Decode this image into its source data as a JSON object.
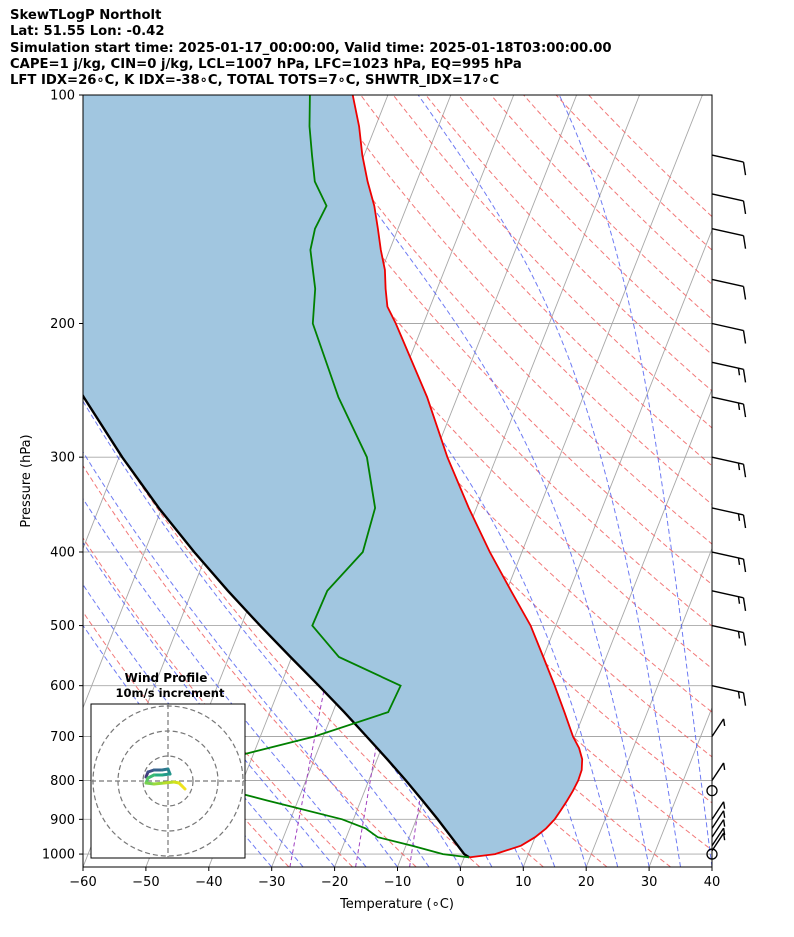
{
  "header": {
    "title": "SkewTLogP Northolt",
    "location": "Lat: 51.55   Lon: -0.42",
    "times": "Simulation start time: 2025-01-17_00:00:00, Valid time: 2025-01-18T03:00:00.00",
    "params": "CAPE=1 j/kg, CIN=0 j/kg, LCL=1007 hPa, LFC=1023 hPa, EQ=995 hPa",
    "indices": "LFT IDX=26∘C, K IDX=-38∘C, TOTAL TOTS=7∘C, SHWTR_IDX=17∘C"
  },
  "chart_data": {
    "type": "line",
    "title": "SkewTLogP Northolt",
    "xlabel": "Temperature (∘C)",
    "ylabel": "Pressure (hPa)",
    "xlim": [
      -60,
      40
    ],
    "ylim": [
      1040,
      100
    ],
    "y_scale": "log",
    "grid": true,
    "x_ticks": [
      "−60",
      "−50",
      "−40",
      "−30",
      "−20",
      "−10",
      "0",
      "10",
      "20",
      "30",
      "40"
    ],
    "y_ticks": [
      "100",
      "200",
      "300",
      "400",
      "500",
      "600",
      "700",
      "800",
      "900",
      "1000"
    ],
    "colors": {
      "temperature": "#ee0000",
      "dewpoint": "#008000",
      "parcel": "#000000",
      "fill": "#a1c6e0",
      "dry_adiabat": "#f06060",
      "moist_adiabat": "#4a5af0",
      "mixing_ratio": "#a040c0",
      "isotherm": "#a8a8a8"
    },
    "series": [
      {
        "key": "temperature",
        "points": [
          [
            1010,
            0.8
          ],
          [
            1000,
            4.7
          ],
          [
            975,
            8.3
          ],
          [
            950,
            10.0
          ],
          [
            925,
            11.2
          ],
          [
            900,
            12.0
          ],
          [
            875,
            12.4
          ],
          [
            850,
            12.8
          ],
          [
            825,
            13.1
          ],
          [
            800,
            13.3
          ],
          [
            775,
            13.2
          ],
          [
            750,
            12.6
          ],
          [
            725,
            11.4
          ],
          [
            700,
            9.7
          ],
          [
            650,
            6.8
          ],
          [
            600,
            3.6
          ],
          [
            550,
            0.0
          ],
          [
            500,
            -4.0
          ],
          [
            450,
            -9.3
          ],
          [
            400,
            -15.1
          ],
          [
            350,
            -21.2
          ],
          [
            300,
            -27.8
          ],
          [
            250,
            -34.8
          ],
          [
            200,
            -44.4
          ],
          [
            190,
            -46.8
          ],
          [
            180,
            -48.2
          ],
          [
            170,
            -49.5
          ],
          [
            160,
            -51.4
          ],
          [
            150,
            -53.2
          ],
          [
            140,
            -55.2
          ],
          [
            130,
            -57.8
          ],
          [
            120,
            -60.3
          ],
          [
            110,
            -62.6
          ],
          [
            100,
            -65.6
          ]
        ]
      },
      {
        "key": "dewpoint",
        "points": [
          [
            1010,
            0.8
          ],
          [
            1000,
            -3.6
          ],
          [
            975,
            -9.0
          ],
          [
            950,
            -15.0
          ],
          [
            925,
            -17.5
          ],
          [
            900,
            -21.8
          ],
          [
            850,
            -34.9
          ],
          [
            810,
            -45.6
          ],
          [
            800,
            -47.2
          ],
          [
            780,
            -52.7
          ],
          [
            750,
            -44.3
          ],
          [
            700,
            -31.4
          ],
          [
            650,
            -21.2
          ],
          [
            600,
            -20.9
          ],
          [
            550,
            -32.5
          ],
          [
            500,
            -38.7
          ],
          [
            450,
            -38.5
          ],
          [
            400,
            -35.3
          ],
          [
            350,
            -36.1
          ],
          [
            300,
            -40.6
          ],
          [
            250,
            -48.9
          ],
          [
            200,
            -57.6
          ],
          [
            180,
            -59.4
          ],
          [
            160,
            -62.6
          ],
          [
            150,
            -63.2
          ],
          [
            140,
            -62.8
          ],
          [
            130,
            -66.2
          ],
          [
            120,
            -68.3
          ],
          [
            110,
            -70.5
          ],
          [
            100,
            -72.4
          ]
        ]
      },
      {
        "key": "parcel",
        "points": [
          [
            1010,
            0.8
          ],
          [
            1000,
            -0.2
          ],
          [
            950,
            -3.3
          ],
          [
            900,
            -6.6
          ],
          [
            850,
            -10.2
          ],
          [
            800,
            -14.1
          ],
          [
            750,
            -18.4
          ],
          [
            700,
            -23.1
          ],
          [
            650,
            -28.2
          ],
          [
            600,
            -33.9
          ],
          [
            550,
            -40.2
          ],
          [
            500,
            -47.0
          ],
          [
            450,
            -54.3
          ],
          [
            400,
            -62.1
          ],
          [
            350,
            -70.5
          ],
          [
            300,
            -79.5
          ],
          [
            250,
            -89.4
          ],
          [
            200,
            -100.7
          ],
          [
            150,
            -114.8
          ],
          [
            100,
            -134.4
          ]
        ]
      }
    ],
    "wind_barbs": [
      {
        "p": 1000,
        "speed": 0
      },
      {
        "p": 990,
        "speed": 5
      },
      {
        "p": 975,
        "speed": 5
      },
      {
        "p": 950,
        "speed": 5
      },
      {
        "p": 925,
        "speed": 5
      },
      {
        "p": 900,
        "speed": 5
      },
      {
        "p": 825,
        "speed": 0
      },
      {
        "p": 800,
        "speed": 5
      },
      {
        "p": 700,
        "speed": 5
      },
      {
        "p": 600,
        "speed": 15
      },
      {
        "p": 500,
        "speed": 15
      },
      {
        "p": 450,
        "speed": 15
      },
      {
        "p": 400,
        "speed": 15
      },
      {
        "p": 350,
        "speed": 15
      },
      {
        "p": 300,
        "speed": 15
      },
      {
        "p": 250,
        "speed": 15
      },
      {
        "p": 225,
        "speed": 15
      },
      {
        "p": 200,
        "speed": 10
      },
      {
        "p": 175,
        "speed": 10
      },
      {
        "p": 150,
        "speed": 10
      },
      {
        "p": 135,
        "speed": 10
      },
      {
        "p": 120,
        "speed": 10
      }
    ],
    "inset": {
      "title": "Wind Profile",
      "subtitle": "10m/s increment",
      "rings": 3
    }
  }
}
